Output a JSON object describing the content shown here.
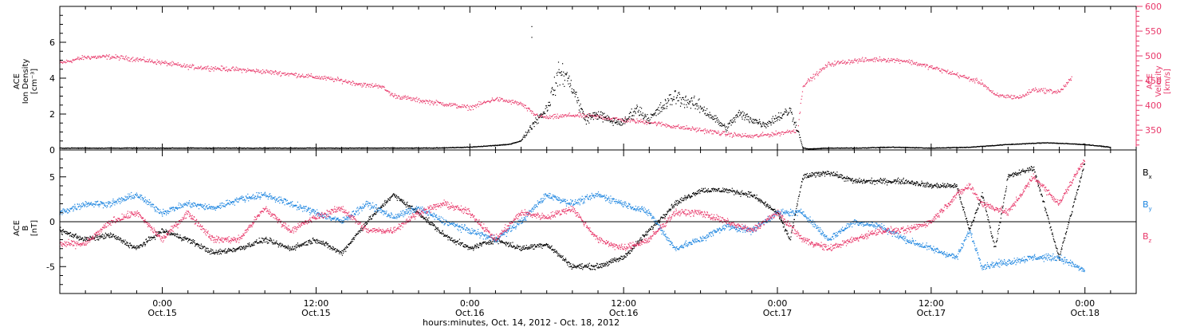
{
  "colors": {
    "black": "#000000",
    "red": "#e8386a",
    "blue": "#1e86e0"
  },
  "chart_data": [
    {
      "type": "scatter",
      "panel": "top",
      "ylabel_left": [
        "ACE",
        "Ion Density",
        "[cm⁻³]"
      ],
      "ylabel_right": [
        "ACE",
        "Velocity",
        "[km/s]"
      ],
      "left_axis": {
        "ylim": [
          0,
          8
        ],
        "ticks": [
          0,
          2,
          4,
          6
        ]
      },
      "right_axis": {
        "ylim": [
          310,
          600
        ],
        "ticks": [
          350,
          400,
          450,
          500,
          550,
          600
        ]
      },
      "x_hours_range": [
        -8,
        76
      ],
      "series": [
        {
          "axis": "left",
          "color": "#000000",
          "x_hours": [
            -8,
            -5,
            -1,
            3,
            7,
            11,
            15,
            18,
            21,
            24,
            25,
            27,
            28,
            29,
            30,
            31,
            31.5,
            32,
            33,
            34,
            35,
            36,
            37,
            38,
            40,
            42,
            43.5,
            44,
            45,
            47,
            48,
            49,
            49.6,
            50,
            50.5,
            52,
            54,
            57,
            60,
            63,
            66,
            69,
            72,
            74
          ],
          "values": [
            0.1,
            0.1,
            0.1,
            0.1,
            0.1,
            0.1,
            0.1,
            0.1,
            0.1,
            0.15,
            0.2,
            0.3,
            0.5,
            1.5,
            2.3,
            4.3,
            4.1,
            3.5,
            1.7,
            2.0,
            1.6,
            1.5,
            2.3,
            1.7,
            3.0,
            2.4,
            1.5,
            1.2,
            2.0,
            1.4,
            1.8,
            2.2,
            1.1,
            0.1,
            0.05,
            0.1,
            0.1,
            0.15,
            0.1,
            0.15,
            0.3,
            0.4,
            0.3,
            0.15
          ]
        },
        {
          "axis": "right",
          "color": "#e8386a",
          "x_hours": [
            -8,
            -6,
            -4,
            -2,
            0,
            2,
            4,
            6,
            8,
            10,
            12,
            14,
            16,
            17,
            18,
            20,
            22,
            24,
            26,
            28,
            29,
            30,
            32,
            34,
            36,
            38,
            40,
            42,
            44,
            46,
            48,
            49.6,
            50,
            52,
            54,
            56,
            58,
            60,
            62,
            64,
            65,
            67,
            68,
            70,
            71
          ],
          "values": [
            485,
            497,
            498,
            493,
            486,
            478,
            475,
            472,
            468,
            463,
            457,
            450,
            440,
            440,
            420,
            410,
            403,
            395,
            413,
            403,
            382,
            375,
            380,
            377,
            370,
            366,
            357,
            350,
            342,
            337,
            343,
            350,
            440,
            483,
            490,
            493,
            490,
            477,
            462,
            445,
            420,
            416,
            432,
            427,
            455
          ]
        }
      ]
    },
    {
      "type": "scatter",
      "panel": "bottom",
      "ylabel_left": [
        "ACE",
        "B",
        "[nT]"
      ],
      "ylim": [
        -8,
        8
      ],
      "ticks": [
        -5,
        0,
        5
      ],
      "x_hours_range": [
        -8,
        76
      ],
      "x_ticks_hours": [
        0,
        12,
        24,
        36,
        48,
        60,
        72
      ],
      "x_tick_labels": [
        [
          "0:00",
          "Oct.15"
        ],
        [
          "12:00",
          "Oct.15"
        ],
        [
          "0:00",
          "Oct.16"
        ],
        [
          "12:00",
          "Oct.16"
        ],
        [
          "0:00",
          "Oct.17"
        ],
        [
          "12:00",
          "Oct.17"
        ],
        [
          "0:00",
          "Oct.18"
        ]
      ],
      "xlabel": "hours:minutes, Oct. 14, 2012 - Oct. 18, 2012",
      "series": [
        {
          "name": "B",
          "sub": "x",
          "color": "#000000",
          "x_hours": [
            -8,
            -6,
            -4,
            -2,
            0,
            2,
            4,
            6,
            8,
            10,
            12,
            14,
            16,
            18,
            20,
            22,
            24,
            26,
            28,
            30,
            32,
            34,
            36,
            38,
            40,
            42,
            44,
            46,
            48,
            49,
            50,
            52,
            54,
            56,
            58,
            60,
            62,
            63,
            64,
            65,
            66,
            68,
            70,
            72
          ],
          "values": [
            -1,
            -2,
            -1.5,
            -3,
            -1,
            -2,
            -3.5,
            -3,
            -2,
            -3,
            -2,
            -3.5,
            0,
            3,
            1,
            -1.5,
            -3,
            -2,
            -3,
            -2.5,
            -5,
            -5,
            -4,
            -1,
            2,
            3.5,
            3.5,
            3,
            1,
            -2,
            5,
            5.5,
            4.5,
            4.5,
            4.5,
            4,
            4,
            -1,
            3,
            -3,
            5,
            6,
            -4,
            6.5
          ]
        },
        {
          "name": "B",
          "sub": "y",
          "color": "#1e86e0",
          "x_hours": [
            -8,
            -6,
            -4,
            -2,
            0,
            2,
            4,
            6,
            8,
            10,
            12,
            14,
            16,
            18,
            20,
            22,
            24,
            26,
            28,
            30,
            32,
            34,
            36,
            38,
            40,
            42,
            44,
            46,
            48,
            50,
            52,
            54,
            56,
            58,
            60,
            62,
            63,
            64,
            66,
            68,
            70,
            72
          ],
          "values": [
            1,
            2,
            2,
            3,
            1,
            2,
            1.5,
            2.5,
            3,
            2,
            1,
            0,
            2,
            0.5,
            1.5,
            0,
            -1,
            -2,
            0,
            3,
            2,
            3,
            2,
            1,
            -3,
            -2,
            -0.5,
            -1,
            1,
            1,
            -2,
            0,
            -0.5,
            -2,
            -3,
            -4,
            -1,
            -5,
            -4.5,
            -4,
            -4,
            -5.5
          ]
        },
        {
          "name": "B",
          "sub": "z",
          "color": "#e8386a",
          "x_hours": [
            -8,
            -6,
            -4,
            -2,
            0,
            2,
            4,
            6,
            8,
            10,
            12,
            14,
            16,
            18,
            20,
            22,
            24,
            26,
            28,
            30,
            32,
            34,
            36,
            38,
            40,
            42,
            44,
            46,
            48,
            50,
            52,
            54,
            56,
            58,
            60,
            62,
            63,
            64,
            66,
            68,
            70,
            72
          ],
          "values": [
            -2.5,
            -2.5,
            0,
            1,
            -2,
            1,
            -2,
            -2,
            1.5,
            -1,
            0.5,
            1.5,
            -1,
            -1,
            1,
            2,
            1,
            -2,
            1,
            0.5,
            1.5,
            -2,
            -3,
            -2,
            1,
            1,
            0,
            -1,
            1,
            -2,
            -3,
            -2,
            -1,
            -1,
            0,
            3,
            4,
            2,
            1,
            5,
            2,
            7
          ]
        }
      ]
    }
  ]
}
